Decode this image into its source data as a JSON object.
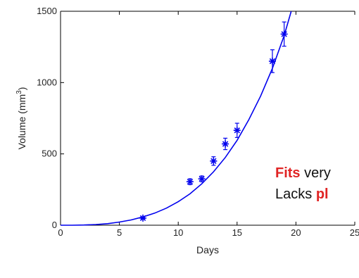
{
  "chart_data": {
    "type": "scatter",
    "xlabel": "Days",
    "ylabel": "Volume (mm",
    "ylabel_sup": "3",
    "ylabel_close": ")",
    "xlim": [
      0,
      25
    ],
    "ylim": [
      0,
      1500
    ],
    "x_ticks": [
      0,
      5,
      10,
      15,
      20,
      25
    ],
    "x_tick_labels": [
      "0",
      "5",
      "10",
      "15",
      "20",
      "25"
    ],
    "y_ticks": [
      0,
      500,
      1000,
      1500
    ],
    "y_tick_labels": [
      "0",
      "500",
      "1000",
      "1500"
    ],
    "grid": false,
    "series": [
      {
        "kind": "data-with-error-bars",
        "marker": "asterisk",
        "color": "#0000ee",
        "x": [
          7,
          11,
          12,
          13,
          14,
          15,
          18,
          19
        ],
        "y": [
          50,
          305,
          325,
          450,
          570,
          665,
          1150,
          1340
        ],
        "err": [
          5,
          20,
          20,
          30,
          40,
          50,
          80,
          85
        ]
      },
      {
        "kind": "fit-curve",
        "color": "#0000ee",
        "x": [
          0,
          1,
          2,
          3,
          4,
          5,
          6,
          7,
          8,
          9,
          10,
          11,
          12,
          13,
          14,
          15,
          16,
          17,
          18,
          19,
          19.6
        ],
        "y": [
          0,
          0.2,
          1.5,
          5,
          11,
          22,
          37,
          58,
          85,
          120,
          165,
          220,
          290,
          375,
          475,
          595,
          740,
          905,
          1100,
          1330,
          1500
        ]
      }
    ]
  },
  "annotations": {
    "line1_highlight": "Fits",
    "line1_rest": " very",
    "line2_prefix": "Lacks ",
    "line2_highlight": "pl",
    "highlight_color": "#e02424"
  }
}
